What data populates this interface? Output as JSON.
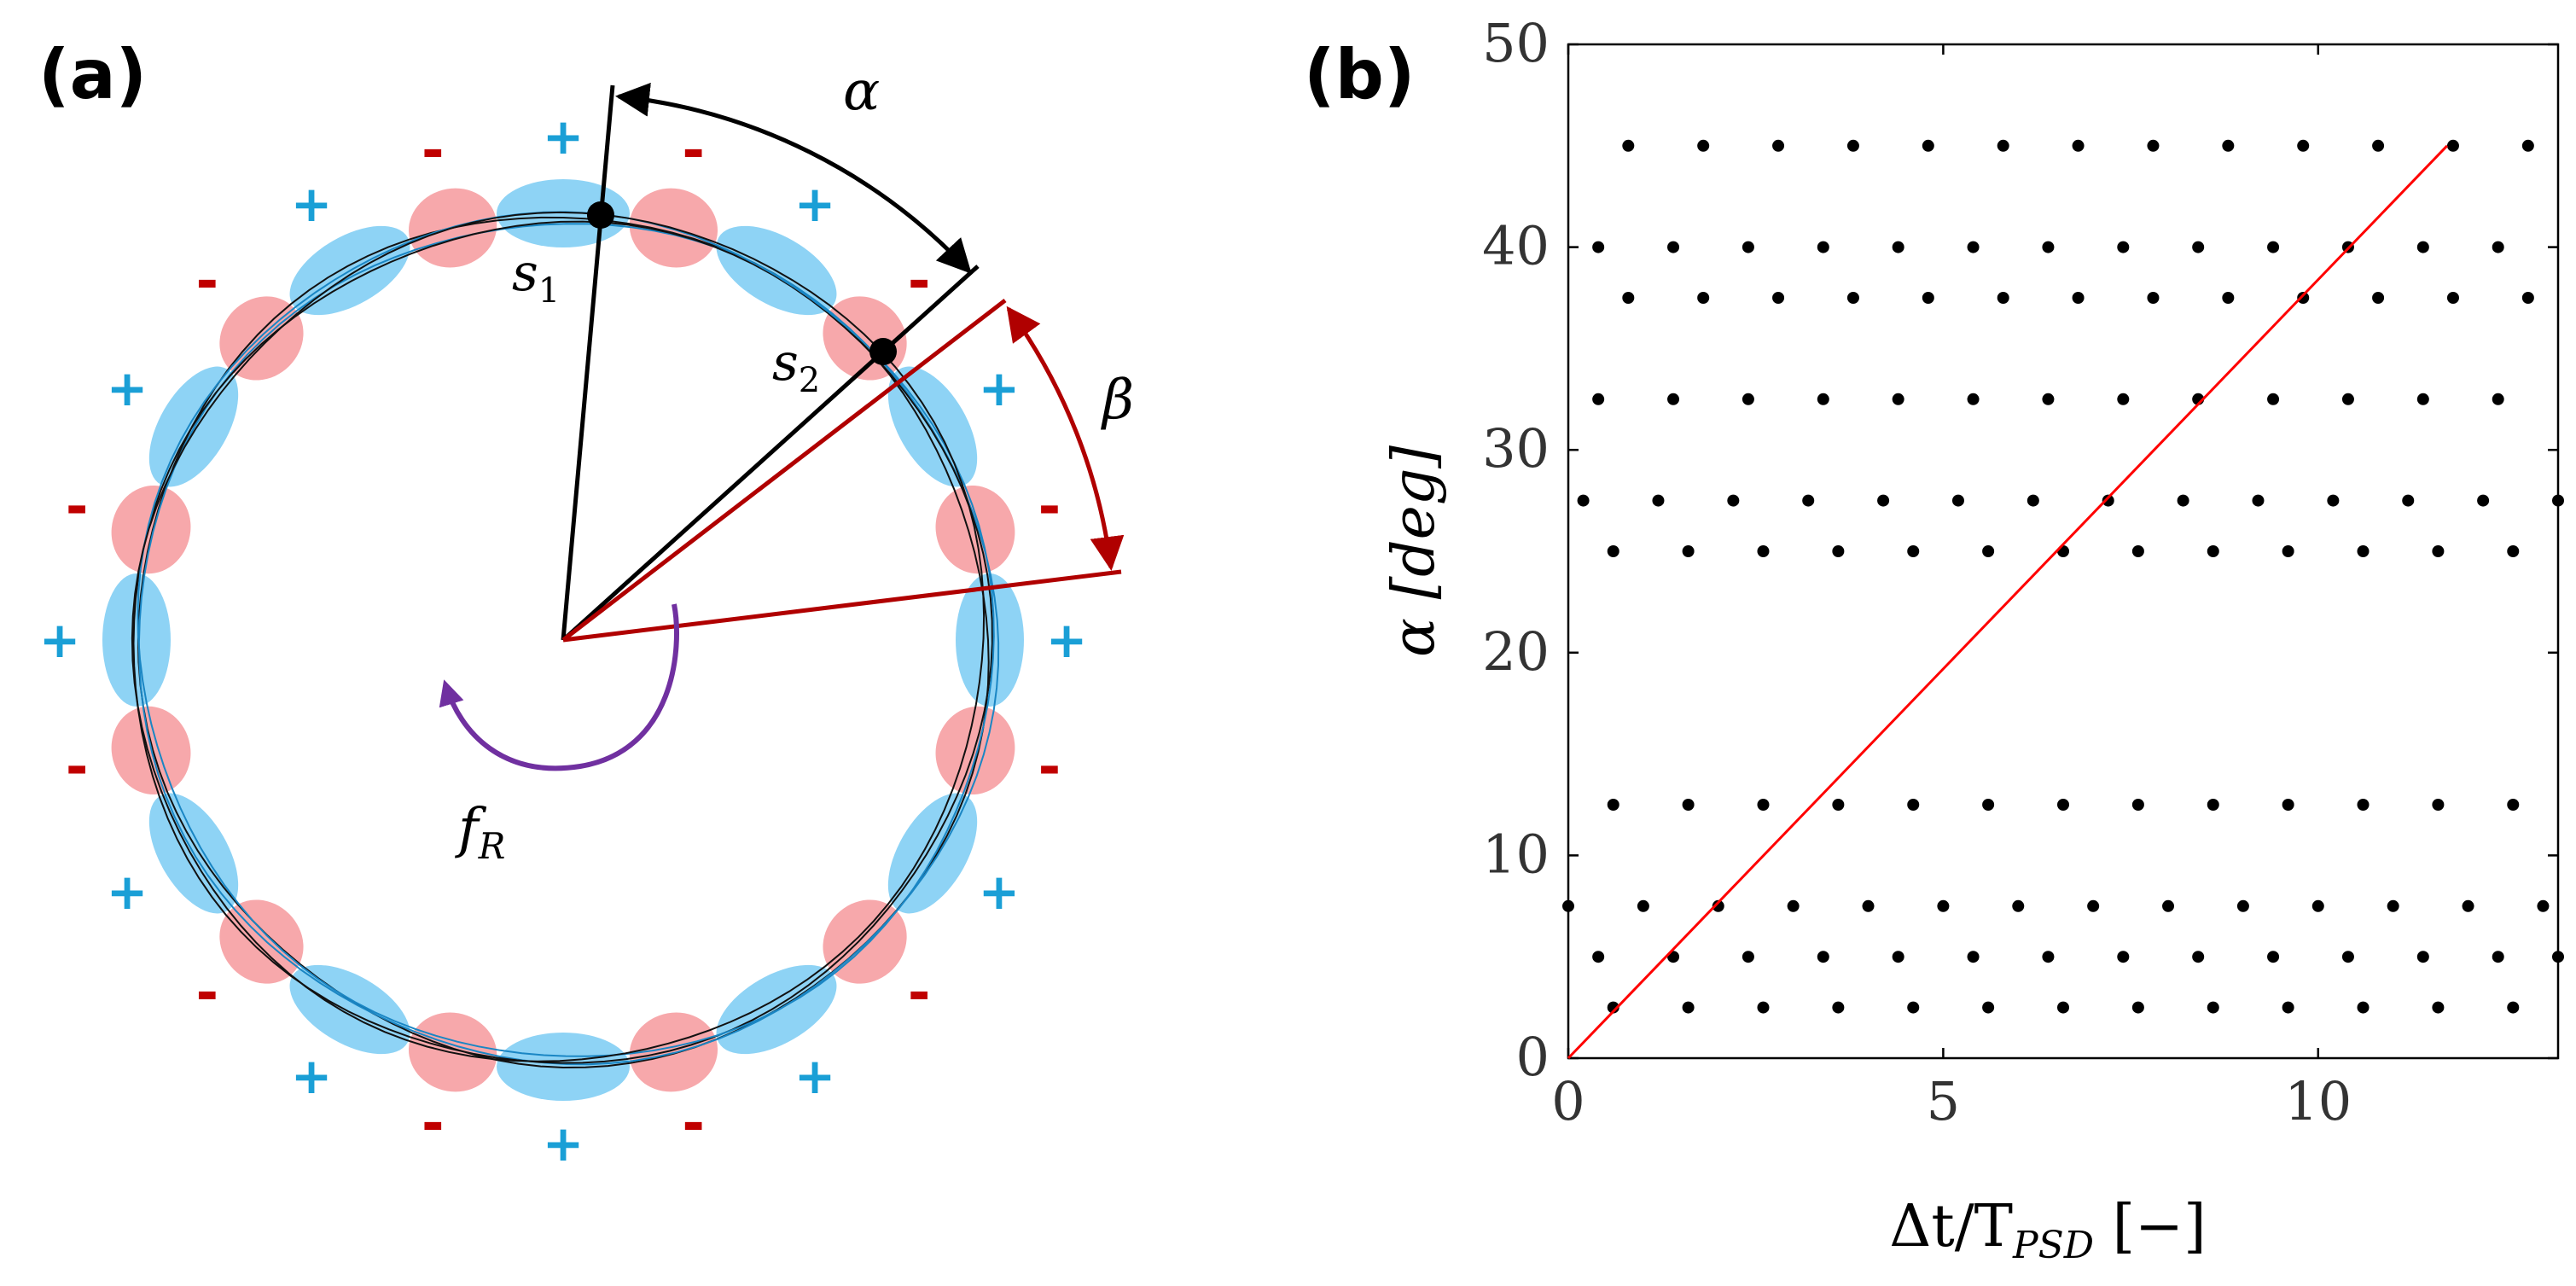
{
  "panel_a": {
    "label": "(a)",
    "alpha_symbol": "α",
    "beta_symbol": "β",
    "s1": "s",
    "s1_sub": "1",
    "s2": "s",
    "s2_sub": "2",
    "fr": "f",
    "fr_sub": "R",
    "plus": "+",
    "minus": "-",
    "colors": {
      "plus_lobe": "#8ed3f5",
      "minus_lobe": "#f7a8ab",
      "plus_sign": "#1a9fd6",
      "minus_sign": "#c00000",
      "beta": "#b00000",
      "rotation_arrow": "#7030a0"
    }
  },
  "panel_b": {
    "label": "(b)",
    "xlabel_main": "Δt/T",
    "xlabel_sub": "PSD",
    "xlabel_tail": " [−]",
    "ylabel_main": "α ",
    "ylabel_tail": "[deg]",
    "xticks": [
      "0",
      "5",
      "10"
    ],
    "yticks": [
      "0",
      "10",
      "20",
      "30",
      "40",
      "50"
    ]
  },
  "chart_data": {
    "type": "scatter",
    "xlabel": "Δt/T_PSD [−]",
    "ylabel": "α [deg]",
    "xlim": [
      0,
      13.2
    ],
    "ylim": [
      0,
      50
    ],
    "grid": false,
    "series": [
      {
        "points": [
          [
            0.8,
            45
          ],
          [
            1.8,
            45
          ],
          [
            2.8,
            45
          ],
          [
            3.8,
            45
          ],
          [
            4.8,
            45
          ],
          [
            5.8,
            45
          ],
          [
            6.8,
            45
          ],
          [
            7.8,
            45
          ],
          [
            8.8,
            45
          ],
          [
            9.8,
            45
          ],
          [
            10.8,
            45
          ],
          [
            11.8,
            45
          ],
          [
            12.8,
            45
          ],
          [
            0.4,
            40
          ],
          [
            1.4,
            40
          ],
          [
            2.4,
            40
          ],
          [
            3.4,
            40
          ],
          [
            4.4,
            40
          ],
          [
            5.4,
            40
          ],
          [
            6.4,
            40
          ],
          [
            7.4,
            40
          ],
          [
            8.4,
            40
          ],
          [
            9.4,
            40
          ],
          [
            10.4,
            40
          ],
          [
            11.4,
            40
          ],
          [
            12.4,
            40
          ],
          [
            0.8,
            37.5
          ],
          [
            1.8,
            37.5
          ],
          [
            2.8,
            37.5
          ],
          [
            3.8,
            37.5
          ],
          [
            4.8,
            37.5
          ],
          [
            5.8,
            37.5
          ],
          [
            6.8,
            37.5
          ],
          [
            7.8,
            37.5
          ],
          [
            8.8,
            37.5
          ],
          [
            9.8,
            37.5
          ],
          [
            10.8,
            37.5
          ],
          [
            11.8,
            37.5
          ],
          [
            12.8,
            37.5
          ],
          [
            0.4,
            32.5
          ],
          [
            1.4,
            32.5
          ],
          [
            2.4,
            32.5
          ],
          [
            3.4,
            32.5
          ],
          [
            4.4,
            32.5
          ],
          [
            5.4,
            32.5
          ],
          [
            6.4,
            32.5
          ],
          [
            7.4,
            32.5
          ],
          [
            8.4,
            32.5
          ],
          [
            9.4,
            32.5
          ],
          [
            10.4,
            32.5
          ],
          [
            11.4,
            32.5
          ],
          [
            12.4,
            32.5
          ],
          [
            0.2,
            27.5
          ],
          [
            1.2,
            27.5
          ],
          [
            2.2,
            27.5
          ],
          [
            3.2,
            27.5
          ],
          [
            4.2,
            27.5
          ],
          [
            5.2,
            27.5
          ],
          [
            6.2,
            27.5
          ],
          [
            7.2,
            27.5
          ],
          [
            8.2,
            27.5
          ],
          [
            9.2,
            27.5
          ],
          [
            10.2,
            27.5
          ],
          [
            11.2,
            27.5
          ],
          [
            12.2,
            27.5
          ],
          [
            13.2,
            27.5
          ],
          [
            0.6,
            25
          ],
          [
            1.6,
            25
          ],
          [
            2.6,
            25
          ],
          [
            3.6,
            25
          ],
          [
            4.6,
            25
          ],
          [
            5.6,
            25
          ],
          [
            6.6,
            25
          ],
          [
            7.6,
            25
          ],
          [
            8.6,
            25
          ],
          [
            9.6,
            25
          ],
          [
            10.6,
            25
          ],
          [
            11.6,
            25
          ],
          [
            12.6,
            25
          ],
          [
            0.6,
            12.5
          ],
          [
            1.6,
            12.5
          ],
          [
            2.6,
            12.5
          ],
          [
            3.6,
            12.5
          ],
          [
            4.6,
            12.5
          ],
          [
            5.6,
            12.5
          ],
          [
            6.6,
            12.5
          ],
          [
            7.6,
            12.5
          ],
          [
            8.6,
            12.5
          ],
          [
            9.6,
            12.5
          ],
          [
            10.6,
            12.5
          ],
          [
            11.6,
            12.5
          ],
          [
            12.6,
            12.5
          ],
          [
            0,
            7.5
          ],
          [
            1,
            7.5
          ],
          [
            2,
            7.5
          ],
          [
            3,
            7.5
          ],
          [
            4,
            7.5
          ],
          [
            5,
            7.5
          ],
          [
            6,
            7.5
          ],
          [
            7,
            7.5
          ],
          [
            8,
            7.5
          ],
          [
            9,
            7.5
          ],
          [
            10,
            7.5
          ],
          [
            11,
            7.5
          ],
          [
            12,
            7.5
          ],
          [
            13,
            7.5
          ],
          [
            0.4,
            5
          ],
          [
            1.4,
            5
          ],
          [
            2.4,
            5
          ],
          [
            3.4,
            5
          ],
          [
            4.4,
            5
          ],
          [
            5.4,
            5
          ],
          [
            6.4,
            5
          ],
          [
            7.4,
            5
          ],
          [
            8.4,
            5
          ],
          [
            9.4,
            5
          ],
          [
            10.4,
            5
          ],
          [
            11.4,
            5
          ],
          [
            12.4,
            5
          ],
          [
            13.2,
            5
          ],
          [
            0.6,
            2.5
          ],
          [
            1.6,
            2.5
          ],
          [
            2.6,
            2.5
          ],
          [
            3.6,
            2.5
          ],
          [
            4.6,
            2.5
          ],
          [
            5.6,
            2.5
          ],
          [
            6.6,
            2.5
          ],
          [
            7.6,
            2.5
          ],
          [
            8.6,
            2.5
          ],
          [
            9.6,
            2.5
          ],
          [
            10.6,
            2.5
          ],
          [
            11.6,
            2.5
          ],
          [
            12.6,
            2.5
          ]
        ],
        "color": "#000000"
      }
    ],
    "line": {
      "x": [
        0,
        11.72
      ],
      "y": [
        0,
        45
      ],
      "color": "#ff0000"
    }
  }
}
